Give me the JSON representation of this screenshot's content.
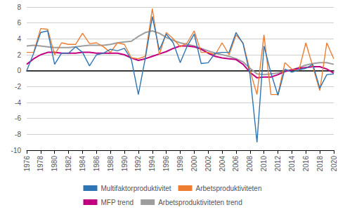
{
  "chart_data": {
    "type": "line",
    "x": [
      1976,
      1977,
      1978,
      1979,
      1980,
      1981,
      1982,
      1983,
      1984,
      1985,
      1986,
      1987,
      1988,
      1989,
      1990,
      1991,
      1992,
      1993,
      1994,
      1995,
      1996,
      1997,
      1998,
      1999,
      2000,
      2001,
      2002,
      2003,
      2004,
      2005,
      2006,
      2007,
      2008,
      2009,
      2010,
      2011,
      2012,
      2013,
      2014,
      2015,
      2016,
      2017,
      2018,
      2019,
      2020
    ],
    "series": [
      {
        "name": "Multifaktorproduktivitet",
        "color": "#2e75b6",
        "values": [
          0.0,
          2.2,
          4.8,
          5.0,
          0.8,
          2.2,
          2.2,
          3.0,
          2.3,
          0.6,
          2.0,
          2.2,
          2.7,
          2.5,
          2.8,
          1.4,
          -3.0,
          1.6,
          6.8,
          2.6,
          4.6,
          3.5,
          1.0,
          3.1,
          4.6,
          0.9,
          1.0,
          2.2,
          2.3,
          2.3,
          4.8,
          3.4,
          -0.5,
          -9.0,
          3.1,
          -0.3,
          -3.1,
          0.2,
          -0.2,
          0.1,
          0.3,
          0.8,
          -2.2,
          -0.5,
          -0.4
        ]
      },
      {
        "name": "Arbetsproduktiviteten",
        "color": "#ed7d31",
        "values": [
          2.3,
          2.3,
          5.3,
          5.2,
          2.0,
          3.5,
          3.3,
          3.3,
          4.7,
          3.4,
          3.5,
          3.0,
          2.3,
          3.5,
          3.3,
          1.6,
          1.5,
          1.8,
          7.8,
          2.0,
          4.8,
          4.0,
          3.0,
          3.5,
          5.0,
          2.3,
          2.3,
          2.0,
          3.5,
          2.0,
          4.5,
          3.5,
          0.0,
          -3.0,
          4.5,
          -3.0,
          -3.0,
          1.0,
          0.2,
          0.0,
          3.5,
          0.5,
          -2.5,
          3.5,
          1.5
        ]
      },
      {
        "name": "MFP trend",
        "color": "#c00080",
        "values": [
          0.8,
          1.5,
          2.0,
          2.3,
          2.3,
          2.2,
          2.2,
          2.2,
          2.3,
          2.3,
          2.2,
          2.2,
          2.2,
          2.2,
          2.0,
          1.6,
          1.3,
          1.5,
          1.8,
          2.1,
          2.4,
          2.8,
          3.1,
          3.1,
          3.0,
          2.7,
          2.2,
          1.8,
          1.6,
          1.5,
          1.4,
          0.8,
          -0.2,
          -0.9,
          -0.8,
          -0.8,
          -0.5,
          -0.1,
          0.1,
          0.3,
          0.4,
          0.5,
          0.5,
          0.2,
          -0.3
        ]
      },
      {
        "name": "Arbetsproduktiviteten trend",
        "color": "#9e9e9e",
        "values": [
          3.1,
          3.2,
          3.1,
          3.0,
          2.9,
          2.9,
          2.9,
          3.0,
          3.1,
          3.2,
          3.2,
          3.2,
          3.3,
          3.5,
          3.6,
          3.7,
          4.3,
          4.8,
          5.0,
          4.7,
          4.2,
          3.8,
          3.5,
          3.3,
          3.1,
          2.8,
          2.5,
          2.2,
          2.0,
          1.8,
          1.5,
          1.1,
          0.3,
          -0.4,
          -0.5,
          -0.4,
          -0.3,
          -0.1,
          0.1,
          0.4,
          0.7,
          0.9,
          1.0,
          1.0,
          0.8
        ]
      }
    ],
    "xlim": [
      1976,
      2020
    ],
    "xticks": [
      1976,
      1978,
      1980,
      1982,
      1984,
      1986,
      1988,
      1990,
      1992,
      1994,
      1996,
      1998,
      2000,
      2002,
      2004,
      2006,
      2008,
      2010,
      2012,
      2014,
      2016,
      2018,
      2020
    ],
    "ylim": [
      -10,
      8
    ],
    "yticks": [
      -10,
      -8,
      -6,
      -4,
      -2,
      0,
      2,
      4,
      6,
      8
    ],
    "grid": true,
    "legend": "bottom"
  }
}
